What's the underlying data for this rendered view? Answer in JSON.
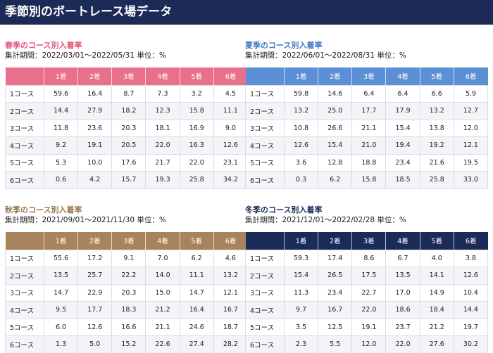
{
  "page_title": "季節別のボートレース場データ",
  "header_cols": [
    "",
    "1着",
    "2着",
    "3着",
    "4着",
    "5着",
    "6着"
  ],
  "sections": {
    "spring": {
      "title": "春季のコース別入着率",
      "meta": "集計期間：2022/03/01～2022/05/31 単位：%",
      "color": "#e8708a",
      "rows": [
        [
          "1コース",
          "59.6",
          "16.4",
          "8.7",
          "7.3",
          "3.2",
          "4.5"
        ],
        [
          "2コース",
          "14.4",
          "27.9",
          "18.2",
          "12.3",
          "15.8",
          "11.1"
        ],
        [
          "3コース",
          "11.8",
          "23.6",
          "20.3",
          "18.1",
          "16.9",
          "9.0"
        ],
        [
          "4コース",
          "9.2",
          "19.1",
          "20.5",
          "22.0",
          "16.3",
          "12.6"
        ],
        [
          "5コース",
          "5.3",
          "10.0",
          "17.6",
          "21.7",
          "22.0",
          "23.1"
        ],
        [
          "6コース",
          "0.6",
          "4.2",
          "15.7",
          "19.3",
          "25.8",
          "34.2"
        ]
      ]
    },
    "summer": {
      "title": "夏季のコース別入着率",
      "meta": "集計期間：2022/06/01～2022/08/31 単位：%",
      "color": "#5b8fd6",
      "rows": [
        [
          "1コース",
          "59.8",
          "14.6",
          "6.4",
          "6.4",
          "6.6",
          "5.9"
        ],
        [
          "2コース",
          "13.2",
          "25.0",
          "17.7",
          "17.9",
          "13.2",
          "12.7"
        ],
        [
          "3コース",
          "10.8",
          "26.6",
          "21.1",
          "15.4",
          "13.8",
          "12.0"
        ],
        [
          "4コース",
          "12.6",
          "15.4",
          "21.0",
          "19.4",
          "19.2",
          "12.1"
        ],
        [
          "5コース",
          "3.6",
          "12.8",
          "18.8",
          "23.4",
          "21.6",
          "19.5"
        ],
        [
          "6コース",
          "0.3",
          "6.2",
          "15.8",
          "18.5",
          "25.8",
          "33.0"
        ]
      ]
    },
    "autumn": {
      "title": "秋季のコース別入着率",
      "meta": "集計期間：2021/09/01～2021/11/30 単位：%",
      "color": "#a8835c",
      "rows": [
        [
          "1コース",
          "55.6",
          "17.2",
          "9.1",
          "7.0",
          "6.2",
          "4.6"
        ],
        [
          "2コース",
          "13.5",
          "25.7",
          "22.2",
          "14.0",
          "11.1",
          "13.2"
        ],
        [
          "3コース",
          "14.7",
          "22.9",
          "20.3",
          "15.0",
          "14.7",
          "12.1"
        ],
        [
          "4コース",
          "9.5",
          "17.7",
          "18.3",
          "21.2",
          "16.4",
          "16.7"
        ],
        [
          "5コース",
          "6.0",
          "12.6",
          "16.6",
          "21.1",
          "24.6",
          "18.7"
        ],
        [
          "6コース",
          "1.3",
          "5.0",
          "15.2",
          "22.6",
          "27.4",
          "28.2"
        ]
      ]
    },
    "winter": {
      "title": "冬季のコース別入着率",
      "meta": "集計期間：2021/12/01～2022/02/28 単位：%",
      "color": "#1b2a57",
      "rows": [
        [
          "1コース",
          "59.3",
          "17.4",
          "8.6",
          "6.7",
          "4.0",
          "3.8"
        ],
        [
          "2コース",
          "15.4",
          "26.5",
          "17.5",
          "13.5",
          "14.1",
          "12.6"
        ],
        [
          "3コース",
          "11.3",
          "23.4",
          "22.7",
          "17.0",
          "14.9",
          "10.4"
        ],
        [
          "4コース",
          "9.7",
          "16.7",
          "22.0",
          "18.6",
          "18.4",
          "14.4"
        ],
        [
          "5コース",
          "3.5",
          "12.5",
          "19.1",
          "23.7",
          "21.2",
          "19.7"
        ],
        [
          "6コース",
          "2.3",
          "5.5",
          "12.0",
          "22.0",
          "27.6",
          "30.2"
        ]
      ]
    }
  }
}
